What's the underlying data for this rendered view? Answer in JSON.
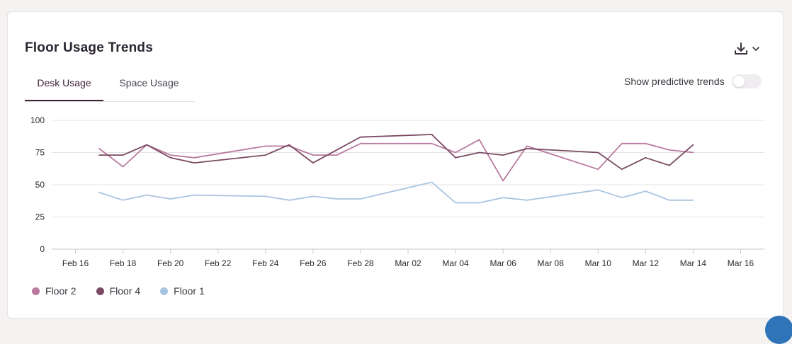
{
  "header": {
    "title": "Floor Usage Trends",
    "download_icon": "download-icon",
    "dropdown_icon": "chevron-down-icon"
  },
  "tabs": [
    {
      "label": "Desk Usage",
      "active": true
    },
    {
      "label": "Space Usage",
      "active": false
    }
  ],
  "predictive": {
    "label": "Show predictive trends",
    "enabled": false
  },
  "colors": {
    "floor2": "#b97a9e",
    "floor4": "#7a4a63",
    "floor1": "#a9c4e0",
    "grid": "#e6e4e7",
    "axis": "#c9c6cb",
    "text": "#2e2833"
  },
  "chart_data": {
    "type": "line",
    "title": "Floor Usage Trends",
    "xlabel": "",
    "ylabel": "",
    "ylim": [
      0,
      100
    ],
    "yticks": [
      0,
      25,
      50,
      75,
      100
    ],
    "xlim": [
      "Feb 15",
      "Mar 17"
    ],
    "x_tick_labels": [
      "Feb 16",
      "Feb 18",
      "Feb 20",
      "Feb 22",
      "Feb 24",
      "Feb 26",
      "Feb 28",
      "Mar 02",
      "Mar 04",
      "Mar 06",
      "Mar 08",
      "Mar 10",
      "Mar 12",
      "Mar 14",
      "Mar 16"
    ],
    "x_tick_days": [
      1,
      3,
      5,
      7,
      9,
      11,
      13,
      15,
      17,
      19,
      21,
      23,
      25,
      27,
      29
    ],
    "x_day_zero": "Feb 15",
    "grid": true,
    "legend_position": "bottom-left",
    "series": [
      {
        "name": "Floor 2",
        "color_key": "floor2",
        "days": [
          2,
          3,
          4,
          5,
          6,
          9,
          10,
          11,
          12,
          13,
          16,
          17,
          18,
          19,
          20,
          23,
          24,
          25,
          26,
          27
        ],
        "values": [
          78,
          64,
          81,
          73,
          71,
          80,
          80,
          73,
          73,
          82,
          82,
          75,
          85,
          53,
          80,
          62,
          82,
          82,
          77,
          75
        ]
      },
      {
        "name": "Floor 4",
        "color_key": "floor4",
        "days": [
          2,
          3,
          4,
          5,
          6,
          9,
          10,
          11,
          13,
          16,
          17,
          18,
          19,
          20,
          23,
          24,
          25,
          26,
          27
        ],
        "values": [
          73,
          73,
          81,
          71,
          67,
          73,
          81,
          67,
          87,
          89,
          71,
          75,
          73,
          78,
          75,
          62,
          71,
          65,
          81
        ]
      },
      {
        "name": "Floor 1",
        "color_key": "floor1",
        "days": [
          2,
          3,
          4,
          5,
          6,
          9,
          10,
          11,
          12,
          13,
          16,
          17,
          18,
          19,
          20,
          23,
          24,
          25,
          26,
          27
        ],
        "values": [
          44,
          38,
          42,
          39,
          42,
          41,
          38,
          41,
          39,
          39,
          52,
          36,
          36,
          40,
          38,
          46,
          40,
          45,
          38,
          38
        ]
      }
    ]
  },
  "legend": [
    {
      "label": "Floor 2",
      "color_key": "floor2"
    },
    {
      "label": "Floor 4",
      "color_key": "floor4"
    },
    {
      "label": "Floor 1",
      "color_key": "floor1"
    }
  ]
}
